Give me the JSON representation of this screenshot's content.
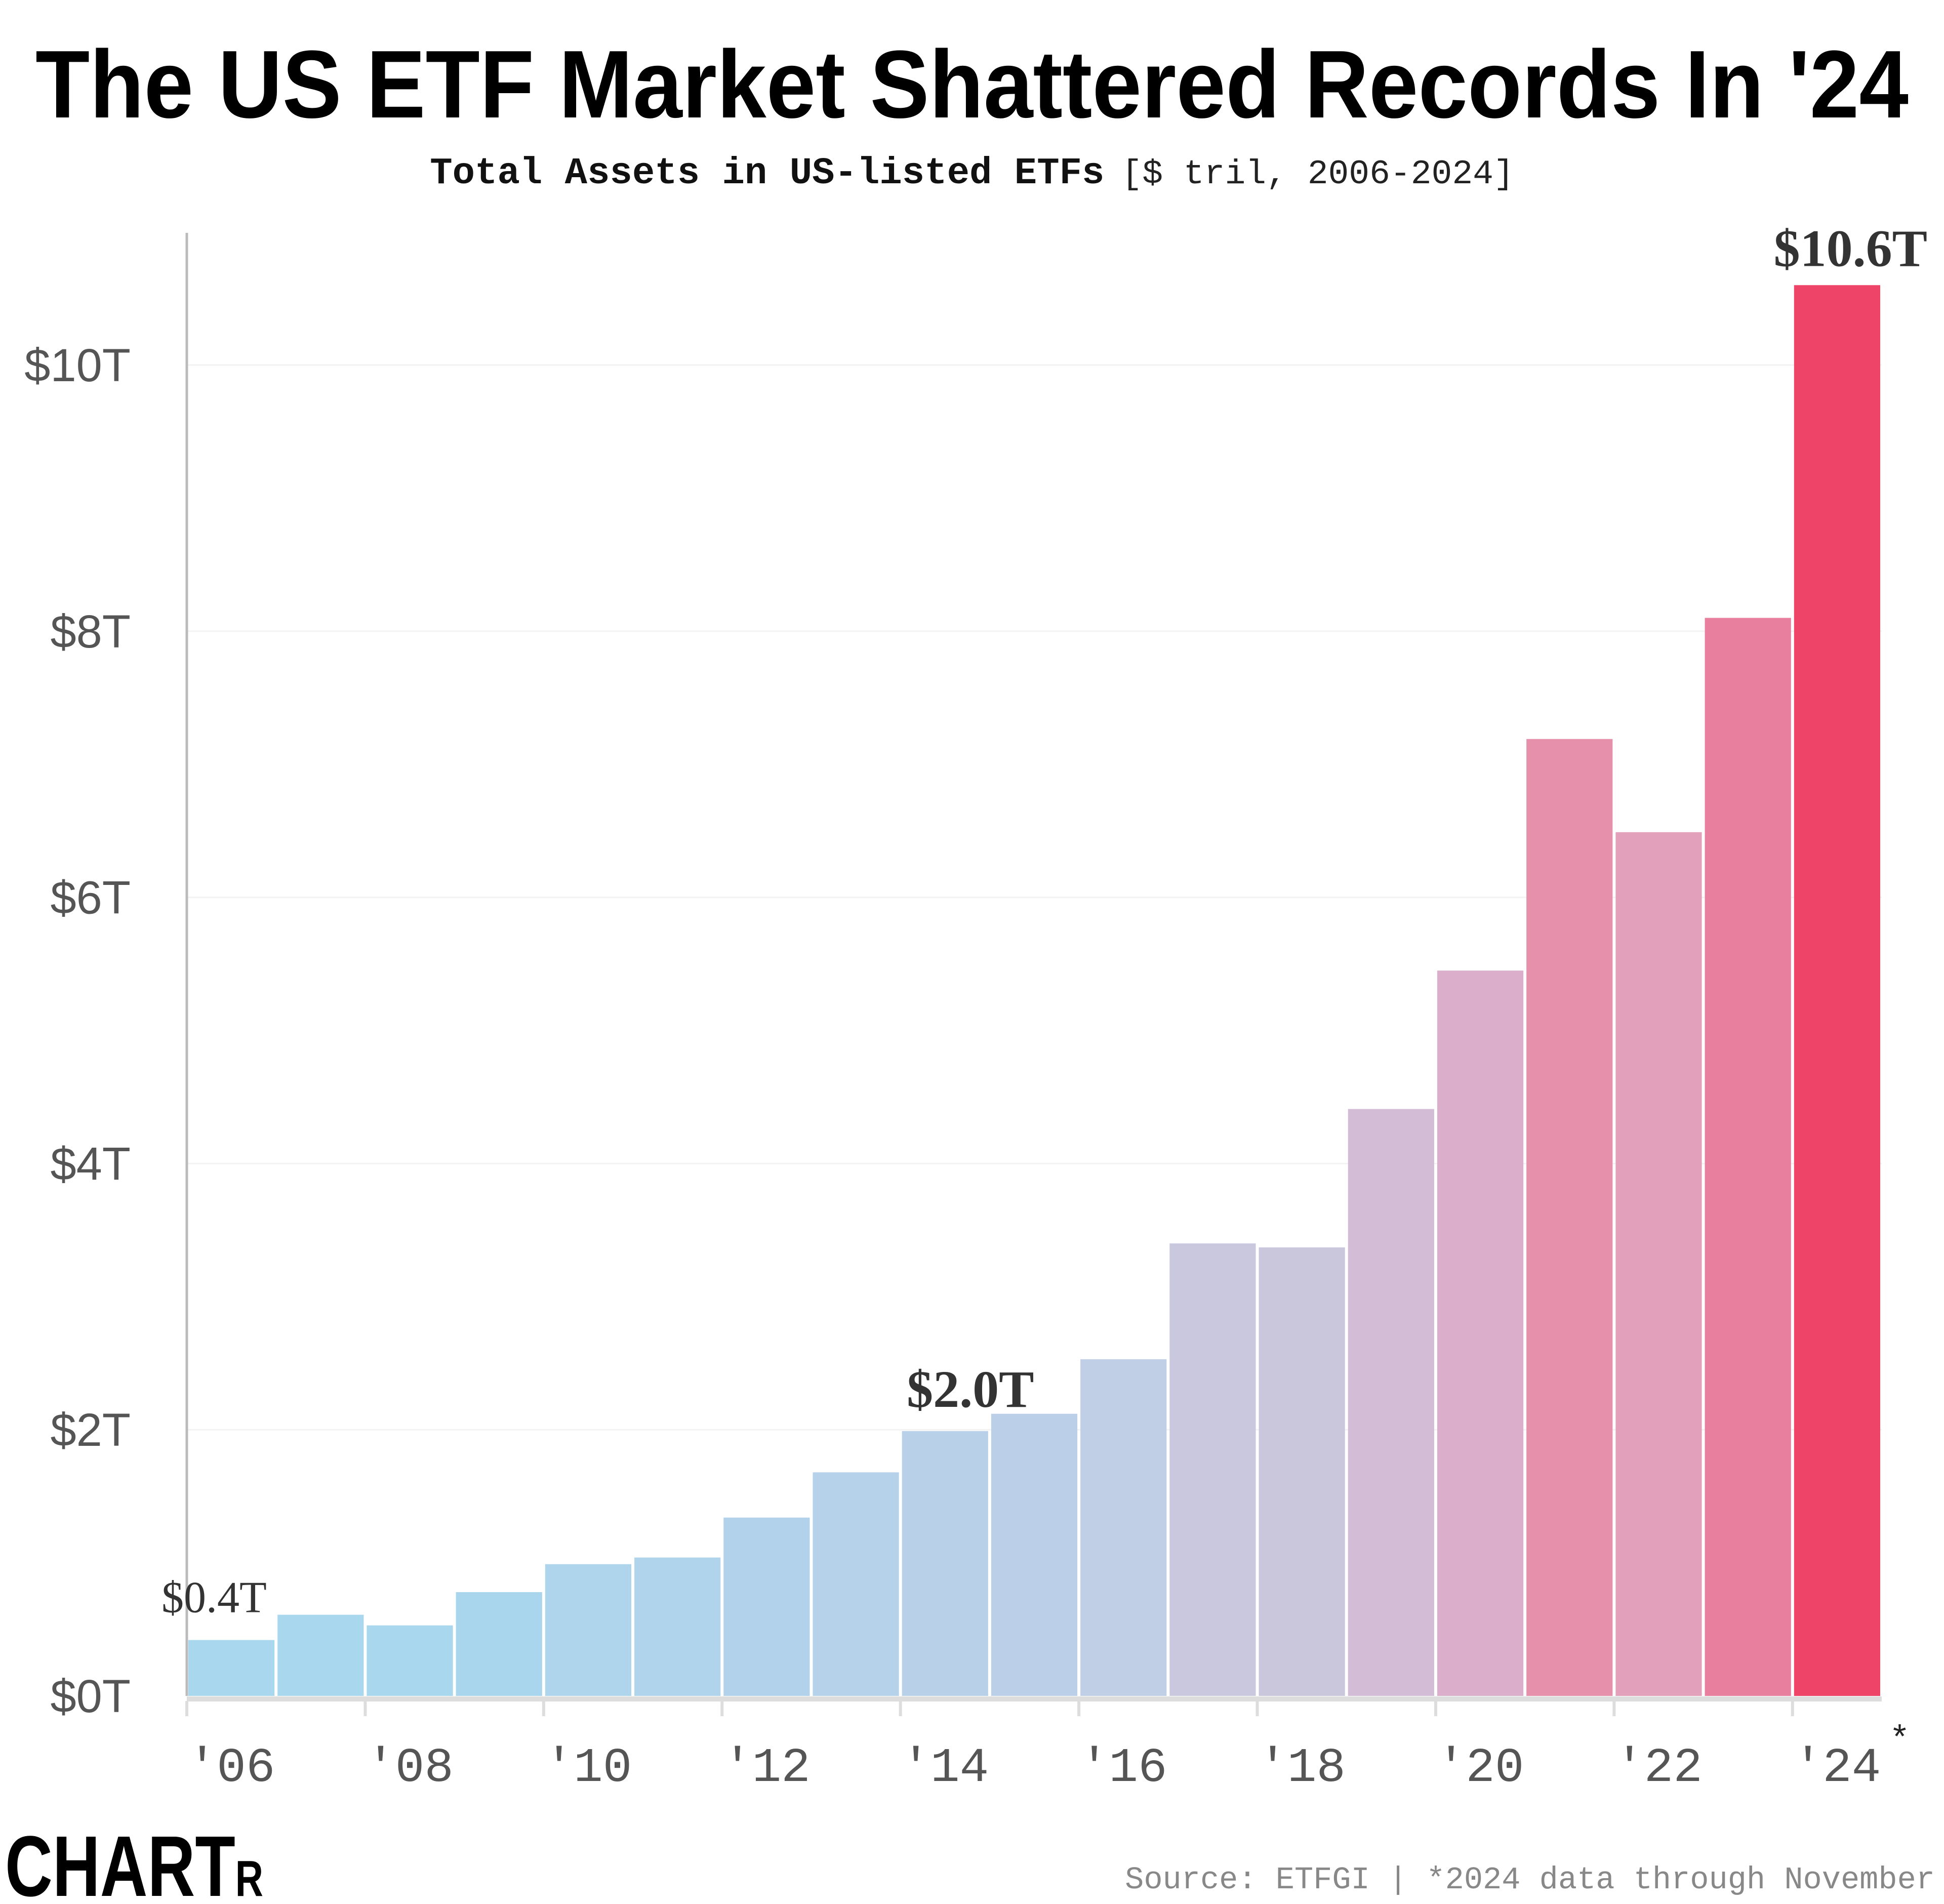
{
  "chart_data": {
    "type": "bar",
    "title": "The US ETF Market Shattered Records In '24",
    "subtitle_bold": "Total Assets in US-listed ETFs",
    "subtitle_note": "[$ tril, 2006-2024]",
    "categories": [
      "2006",
      "2007",
      "2008",
      "2009",
      "2010",
      "2011",
      "2012",
      "2013",
      "2014",
      "2015",
      "2016",
      "2017",
      "2018",
      "2019",
      "2020",
      "2021",
      "2022",
      "2023",
      "2024"
    ],
    "values": [
      0.42,
      0.61,
      0.53,
      0.78,
      0.99,
      1.04,
      1.34,
      1.68,
      1.99,
      2.12,
      2.53,
      3.4,
      3.37,
      4.41,
      5.45,
      7.19,
      6.49,
      8.1,
      10.6
    ],
    "colors": [
      "#a9d8ee",
      "#a9d8ee",
      "#a9d8ee",
      "#aad6ed",
      "#aed5ec",
      "#afd4eb",
      "#b2d2eb",
      "#b6d1ea",
      "#b9d0e9",
      "#bccfe8",
      "#c0cee6",
      "#c9c8de",
      "#cac6dc",
      "#d3bcd5",
      "#dbaecb",
      "#e690ab",
      "#e3a0bb",
      "#e87f9f",
      "#ee4467"
    ],
    "ylim": [
      0,
      11
    ],
    "yticks": [
      {
        "value": 0,
        "label": "$0T"
      },
      {
        "value": 2,
        "label": "$2T"
      },
      {
        "value": 4,
        "label": "$4T"
      },
      {
        "value": 6,
        "label": "$6T"
      },
      {
        "value": 8,
        "label": "$8T"
      },
      {
        "value": 10,
        "label": "$10T"
      }
    ],
    "xticks": [
      {
        "index": 0,
        "label": "'06"
      },
      {
        "index": 2,
        "label": "'08"
      },
      {
        "index": 4,
        "label": "'10"
      },
      {
        "index": 6,
        "label": "'12"
      },
      {
        "index": 8,
        "label": "'14"
      },
      {
        "index": 10,
        "label": "'16"
      },
      {
        "index": 12,
        "label": "'18"
      },
      {
        "index": 14,
        "label": "'20"
      },
      {
        "index": 16,
        "label": "'22"
      },
      {
        "index": 18,
        "label": "'24",
        "footnote": "*"
      }
    ],
    "annotations": [
      {
        "index": 0,
        "label": "$0.4T"
      },
      {
        "index": 8,
        "label": "$2.0T"
      },
      {
        "index": 18,
        "label": "$10.6T"
      }
    ],
    "grid": true,
    "legend": "none"
  },
  "footer": {
    "logo": "CHARTR",
    "source": "Source: ETFGI | *2024 data through November"
  }
}
